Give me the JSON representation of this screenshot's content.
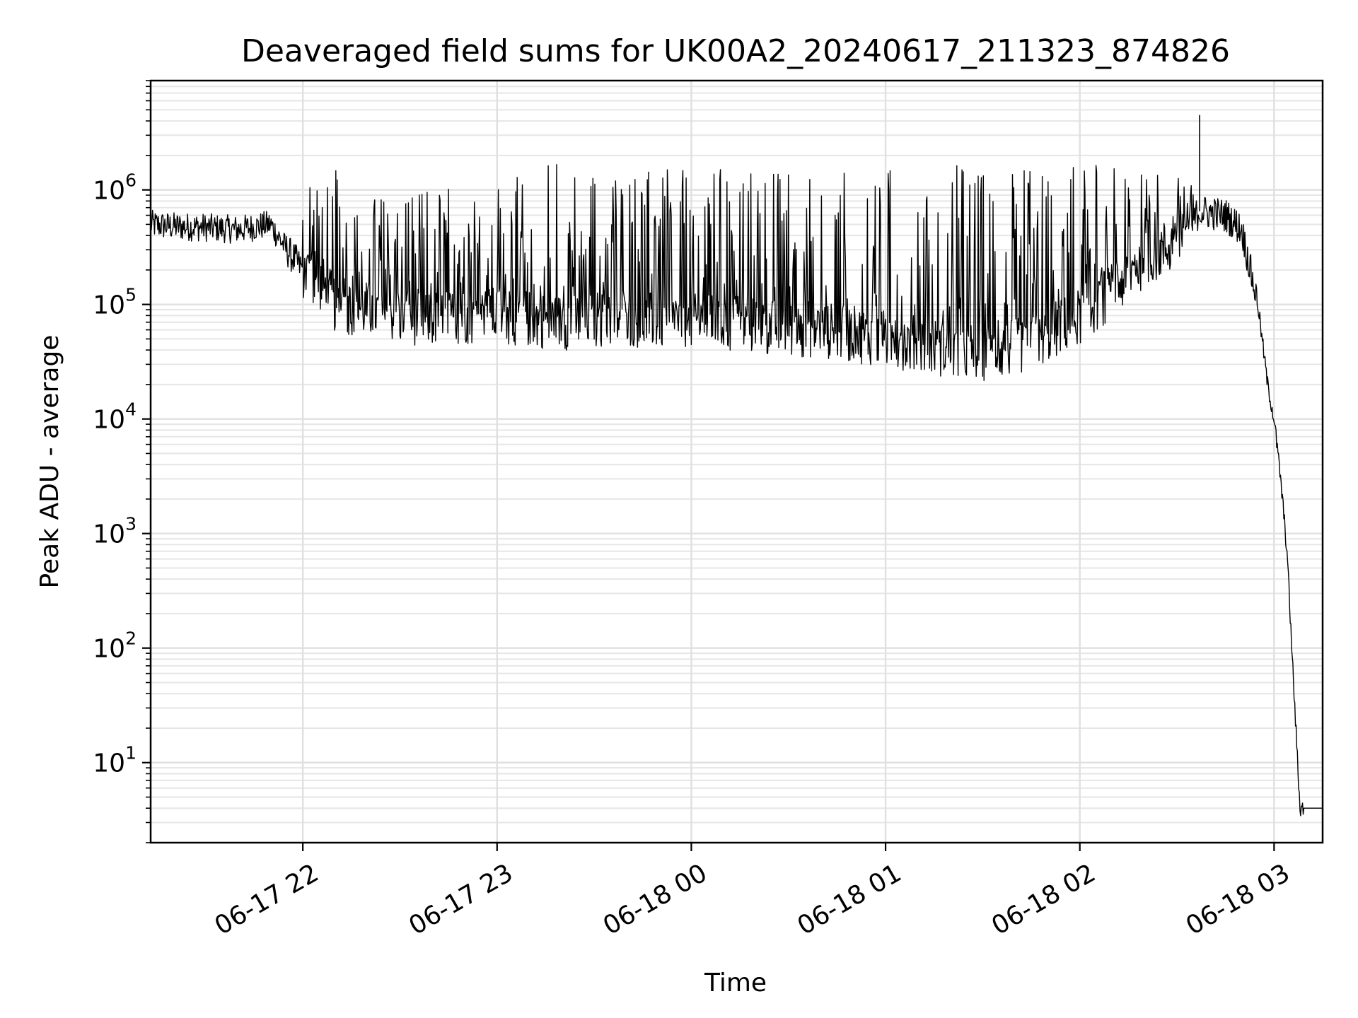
{
  "chart_data": {
    "type": "line",
    "title": "Deaveraged field sums for UK00A2_20240617_211323_874826",
    "xlabel": "Time",
    "ylabel": "Peak ADU - average",
    "yscale": "log",
    "grid": true,
    "xlim": [
      "2024-06-17 21:13",
      "2024-06-18 03:15"
    ],
    "ylim": [
      2,
      9000000
    ],
    "line_color": "#000000",
    "x_ticks": [
      "06-17 22",
      "06-17 23",
      "06-18 00",
      "06-18 01",
      "06-18 02",
      "06-18 03"
    ],
    "x_tick_times": [
      "2024-06-17 22:00",
      "2024-06-17 23:00",
      "2024-06-18 00:00",
      "2024-06-18 01:00",
      "2024-06-18 02:00",
      "2024-06-18 03:00"
    ],
    "y_ticks": [
      {
        "base": "10",
        "exp": "1",
        "value": 10
      },
      {
        "base": "10",
        "exp": "2",
        "value": 100
      },
      {
        "base": "10",
        "exp": "3",
        "value": 1000
      },
      {
        "base": "10",
        "exp": "4",
        "value": 10000
      },
      {
        "base": "10",
        "exp": "5",
        "value": 100000
      },
      {
        "base": "10",
        "exp": "6",
        "value": 1000000
      }
    ],
    "series": [
      {
        "x": [
          "2024-06-17 21:13",
          "2024-06-17 21:20",
          "2024-06-17 21:30",
          "2024-06-17 21:40",
          "2024-06-17 21:50",
          "2024-06-17 21:55",
          "2024-06-17 22:00",
          "2024-06-17 22:06",
          "2024-06-17 22:10",
          "2024-06-17 22:20",
          "2024-06-17 22:30",
          "2024-06-17 22:40",
          "2024-06-17 22:50",
          "2024-06-17 23:00",
          "2024-06-17 23:10",
          "2024-06-17 23:20",
          "2024-06-17 23:30",
          "2024-06-17 23:40",
          "2024-06-17 23:50",
          "2024-06-18 00:00",
          "2024-06-18 00:10",
          "2024-06-18 00:20",
          "2024-06-18 00:30",
          "2024-06-18 00:40",
          "2024-06-18 00:50",
          "2024-06-18 01:00",
          "2024-06-18 01:10",
          "2024-06-18 01:20",
          "2024-06-18 01:30",
          "2024-06-18 01:40",
          "2024-06-18 01:50",
          "2024-06-18 02:00",
          "2024-06-18 02:10",
          "2024-06-18 02:20",
          "2024-06-18 02:30",
          "2024-06-18 02:37",
          "2024-06-18 02:45",
          "2024-06-18 02:50",
          "2024-06-18 02:55",
          "2024-06-18 02:58",
          "2024-06-18 03:00",
          "2024-06-18 03:02",
          "2024-06-18 03:04",
          "2024-06-18 03:06",
          "2024-06-18 03:08",
          "2024-06-18 03:15"
        ],
        "y": [
          500000,
          480000,
          470000,
          450000,
          500000,
          300000,
          200000,
          150000,
          100000,
          90000,
          80000,
          75000,
          80000,
          80000,
          75000,
          70000,
          75000,
          75000,
          72000,
          70000,
          68000,
          65000,
          62000,
          60000,
          55000,
          50000,
          45000,
          40000,
          38000,
          42000,
          55000,
          80000,
          130000,
          250000,
          350000,
          650000,
          600000,
          450000,
          100000,
          20000,
          10000,
          3000,
          700,
          50,
          4,
          4
        ],
        "peaks": [
          700000,
          650000,
          850000,
          950000,
          600000,
          1500000,
          700000,
          900000,
          1000000,
          1100000,
          1200000,
          1300000,
          2100000,
          1400000,
          1500000,
          1500000,
          1500000,
          1600000,
          1700000,
          1500000,
          1600000,
          1500000,
          1500000,
          1600000,
          1500000,
          1700000,
          1500000,
          1600000,
          1700000,
          1800000,
          1700000,
          1400000,
          1300000,
          1200000,
          4500000,
          1300000,
          650000
        ]
      }
    ]
  }
}
